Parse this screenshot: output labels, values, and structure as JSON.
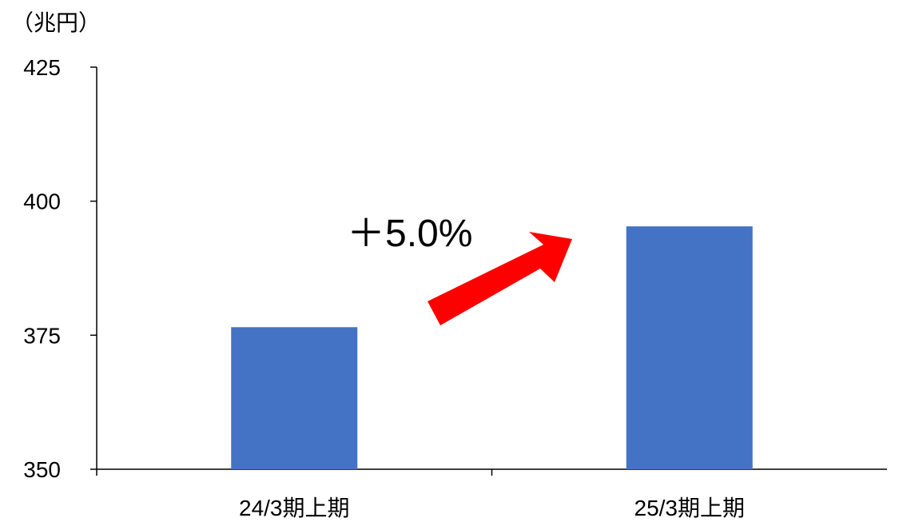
{
  "chart_data": {
    "type": "bar",
    "unit_label": "（兆円）",
    "categories": [
      "24/3期上期",
      "25/3期上期"
    ],
    "values": [
      376.5,
      395.3
    ],
    "ylim": [
      350,
      425
    ],
    "yticks": [
      350,
      375,
      400,
      425
    ],
    "grid": false,
    "legend": "none",
    "annotation": {
      "text": "＋5.0%",
      "arrow": "up-right",
      "arrow_color": "#FF0000"
    },
    "bar_color": "#4472C4",
    "axis_color": "#000000"
  }
}
